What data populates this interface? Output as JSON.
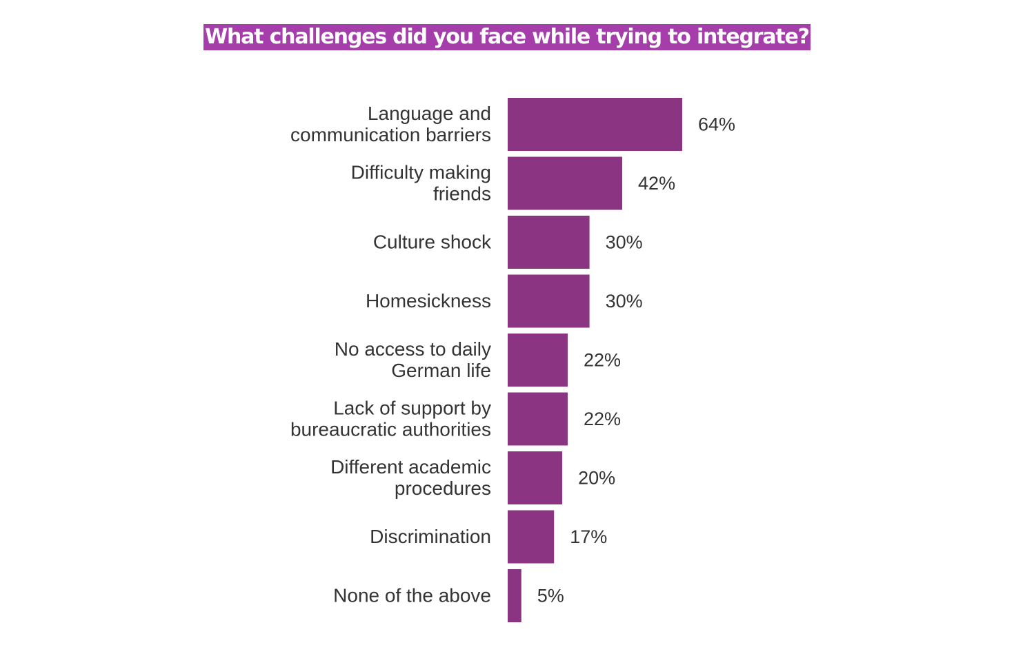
{
  "title": "What challenges did you face while trying to integrate?",
  "chart_data": {
    "type": "bar",
    "orientation": "horizontal",
    "title": "What challenges did you face while trying to integrate?",
    "categories": [
      [
        "Language  and",
        "communication barriers"
      ],
      [
        "Difficulty making",
        "friends"
      ],
      [
        "Culture shock"
      ],
      [
        "Homesickness"
      ],
      [
        "No access to daily",
        "German life"
      ],
      [
        "Lack of support by",
        "bureaucratic authorities"
      ],
      [
        "Different academic",
        "procedures"
      ],
      [
        "Discrimination"
      ],
      [
        "None of the above"
      ]
    ],
    "values": [
      64,
      42,
      30,
      30,
      22,
      22,
      20,
      17,
      5
    ],
    "value_labels": [
      "64%",
      "42%",
      "30%",
      "30%",
      "22%",
      "22%",
      "20%",
      "17%",
      "5%"
    ],
    "unit": "%",
    "xlabel": "",
    "ylabel": "",
    "xlim": [
      0,
      64
    ],
    "grid": false,
    "legend": "none",
    "bar_color": "#8a3482",
    "title_background": "#a53dab"
  }
}
